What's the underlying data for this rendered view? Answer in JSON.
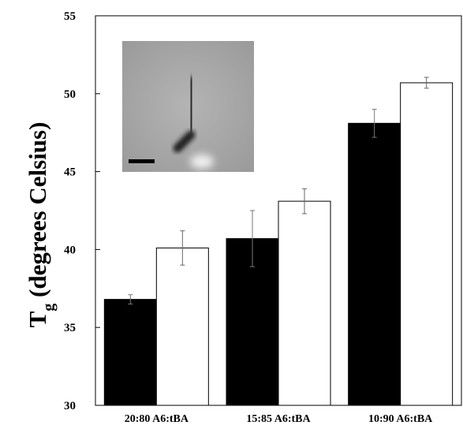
{
  "chart_data": {
    "type": "bar",
    "categories": [
      "20:80 A6:tBA",
      "15:85 A6:tBA",
      "10:90 A6:tBA"
    ],
    "series": [
      {
        "values": [
          36.8,
          40.7,
          48.1
        ],
        "errors": [
          0.3,
          1.8,
          0.9
        ],
        "fill": "#000000"
      },
      {
        "values": [
          40.1,
          43.1,
          50.7
        ],
        "errors": [
          1.1,
          0.8,
          0.35
        ],
        "fill": "#ffffff"
      }
    ],
    "ylim": [
      30,
      55
    ],
    "yticks": [
      30,
      35,
      40,
      45,
      50,
      55
    ],
    "ylabel": {
      "main": "T",
      "subscript": "g",
      "rest": " (degrees Celsius)"
    },
    "xlabel": "",
    "title": "",
    "inset": "micrograph image with scale bar"
  }
}
